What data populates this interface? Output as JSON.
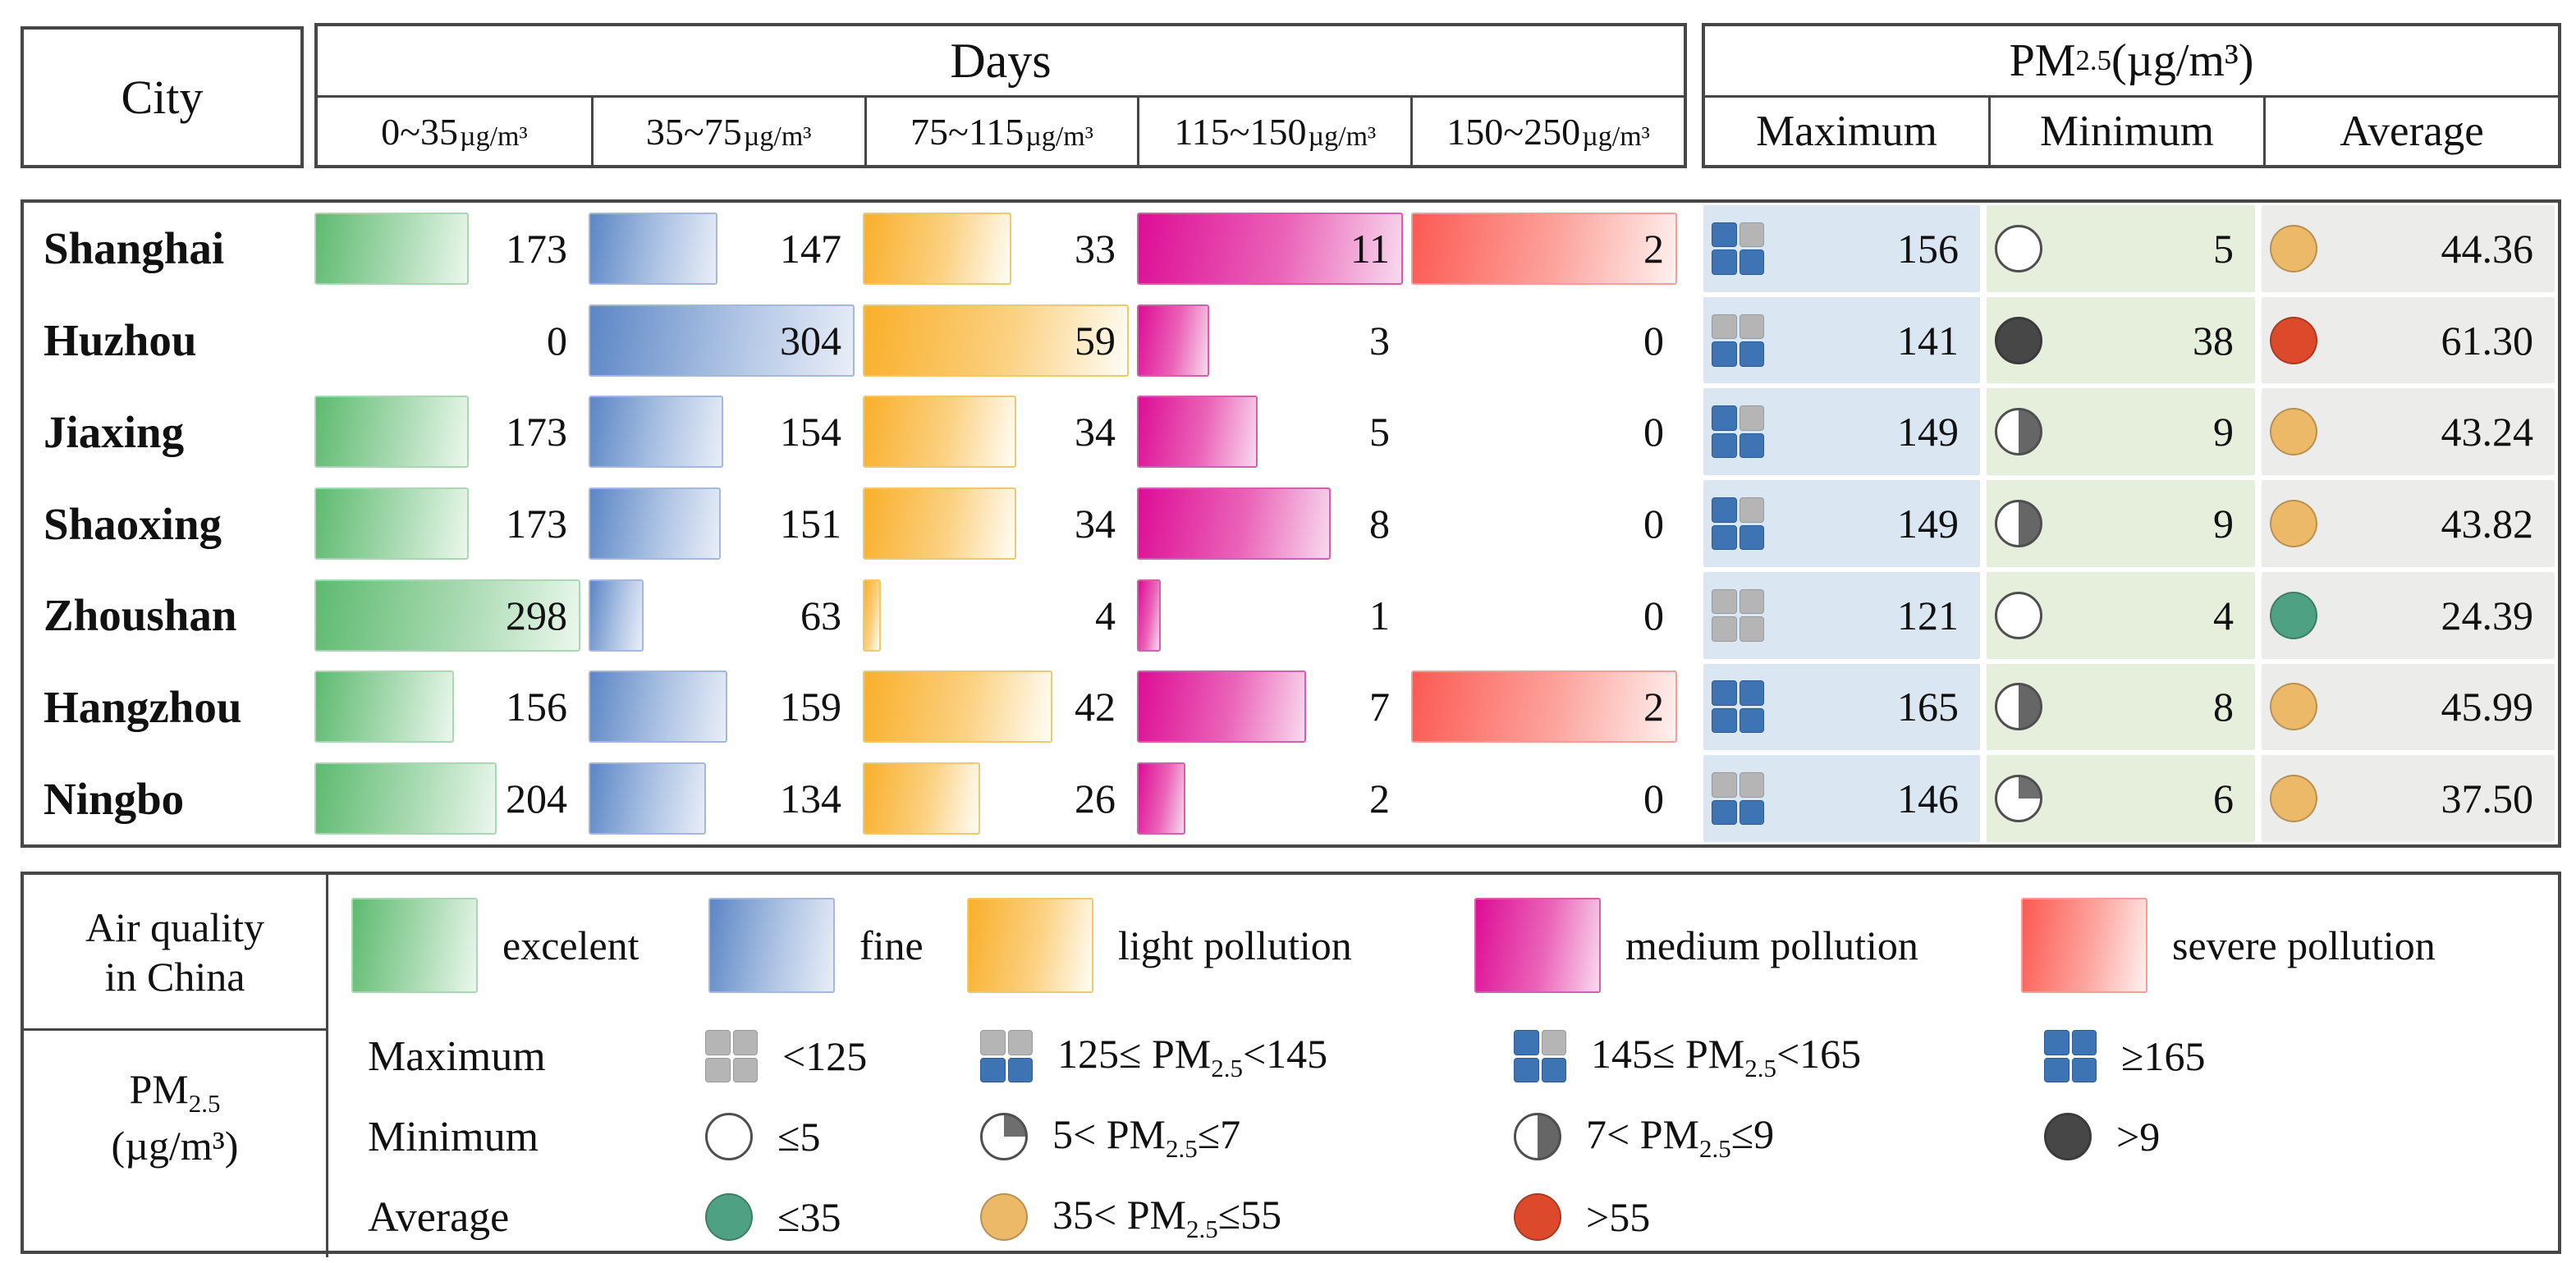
{
  "header": {
    "city": "City",
    "days_title": "Days",
    "days_columns": [
      {
        "range": "0~35",
        "unit": "µg/m³"
      },
      {
        "range": "35~75",
        "unit": "µg/m³"
      },
      {
        "range": "75~115",
        "unit": "µg/m³"
      },
      {
        "range": "115~150",
        "unit": "µg/m³"
      },
      {
        "range": "150~250",
        "unit": "µg/m³"
      }
    ],
    "pm_title": {
      "pre": "PM",
      "sub": "2.5",
      "post": "(µg/m³)"
    },
    "pm_columns": [
      "Maximum",
      "Minimum",
      "Average"
    ]
  },
  "rows": [
    {
      "city": "Shanghai",
      "days": [
        173,
        147,
        33,
        11,
        2
      ],
      "max": 156,
      "max_icon": "q3",
      "min": 5,
      "min_icon": "empty",
      "avg": "44.36",
      "avg_icon": "orange"
    },
    {
      "city": "Huzhou",
      "days": [
        0,
        304,
        59,
        3,
        0
      ],
      "max": 141,
      "max_icon": "q2",
      "min": 38,
      "min_icon": "full",
      "avg": "61.30",
      "avg_icon": "red"
    },
    {
      "city": "Jiaxing",
      "days": [
        173,
        154,
        34,
        5,
        0
      ],
      "max": 149,
      "max_icon": "q3",
      "min": 9,
      "min_icon": "half",
      "avg": "43.24",
      "avg_icon": "orange"
    },
    {
      "city": "Shaoxing",
      "days": [
        173,
        151,
        34,
        8,
        0
      ],
      "max": 149,
      "max_icon": "q3",
      "min": 9,
      "min_icon": "half",
      "avg": "43.82",
      "avg_icon": "orange"
    },
    {
      "city": "Zhoushan",
      "days": [
        298,
        63,
        4,
        1,
        0
      ],
      "max": 121,
      "max_icon": "q0",
      "min": 4,
      "min_icon": "empty",
      "avg": "24.39",
      "avg_icon": "green"
    },
    {
      "city": "Hangzhou",
      "days": [
        156,
        159,
        42,
        7,
        2
      ],
      "max": 165,
      "max_icon": "q4",
      "min": 8,
      "min_icon": "half",
      "avg": "45.99",
      "avg_icon": "orange"
    },
    {
      "city": "Ningbo",
      "days": [
        204,
        134,
        26,
        2,
        0
      ],
      "max": 146,
      "max_icon": "q2",
      "min": 6,
      "min_icon": "quarter",
      "avg": "37.50",
      "avg_icon": "orange"
    }
  ],
  "max_icon_defs": {
    "q0": [
      "g",
      "g",
      "g",
      "g"
    ],
    "q2": [
      "g",
      "g",
      "b",
      "b"
    ],
    "q3": [
      "b",
      "g",
      "b",
      "b"
    ],
    "q4": [
      "b",
      "b",
      "b",
      "b"
    ]
  },
  "legend": {
    "air_title_line1": "Air quality",
    "air_title_line2": "in China",
    "pm_label": {
      "pre": "PM",
      "sub": "2.5",
      "post": "(µg/m³)"
    },
    "air_items": [
      {
        "color": "green",
        "label": "excelent"
      },
      {
        "color": "blue",
        "label": "fine"
      },
      {
        "color": "yellow",
        "label": "light pollution"
      },
      {
        "color": "magenta",
        "label": "medium pollution"
      },
      {
        "color": "red",
        "label": "severe pollution"
      }
    ],
    "max_row": {
      "label": "Maximum",
      "items": [
        {
          "icon": "q0",
          "pre": "<125",
          "sub": "",
          "post": ""
        },
        {
          "icon": "q2",
          "pre": "125≤ PM",
          "sub": "2.5",
          "post": "<145"
        },
        {
          "icon": "q3",
          "pre": "145≤ PM",
          "sub": "2.5",
          "post": "<165"
        },
        {
          "icon": "q4",
          "pre": "≥165",
          "sub": "",
          "post": ""
        }
      ]
    },
    "min_row": {
      "label": "Minimum",
      "items": [
        {
          "icon": "empty",
          "pre": "≤5",
          "sub": "",
          "post": ""
        },
        {
          "icon": "quarter",
          "pre": "5< PM",
          "sub": "2.5",
          "post": "≤7"
        },
        {
          "icon": "half",
          "pre": "7< PM",
          "sub": "2.5",
          "post": "≤9"
        },
        {
          "icon": "full",
          "pre": ">9",
          "sub": "",
          "post": ""
        }
      ]
    },
    "avg_row": {
      "label": "Average",
      "items": [
        {
          "icon": "green",
          "pre": "≤35",
          "sub": "",
          "post": ""
        },
        {
          "icon": "orange",
          "pre": "35< PM",
          "sub": "2.5",
          "post": "≤55"
        },
        {
          "icon": "red",
          "pre": ">55",
          "sub": "",
          "post": ""
        }
      ]
    }
  },
  "colors": {
    "quad_blue": "#3e74b4",
    "quad_gray": "#b5b5b5",
    "min_circle_fill": "#5f5f5f",
    "avg_green": "#4fa183",
    "avg_orange": "#ecb969",
    "avg_red": "#dc4a2b",
    "col_bg_max": "#dae7f3",
    "col_bg_min": "#e5efdb",
    "col_bg_avg": "#ecedea",
    "bar_green": "#5eba70",
    "bar_blue": "#5c86c5",
    "bar_yellow": "#f9af2a",
    "bar_magenta": "#dd0d95",
    "bar_red": "#fb5a52"
  },
  "chart_data": {
    "type": "table",
    "title": "Air quality days distribution and PM2.5 statistics by city",
    "columns": [
      "City",
      "Days 0~35µg/m³ (excelent)",
      "Days 35~75µg/m³ (fine)",
      "Days 75~115µg/m³ (light pollution)",
      "Days 115~150µg/m³ (medium pollution)",
      "Days 150~250µg/m³ (severe pollution)",
      "PM2.5 Maximum (µg/m³)",
      "PM2.5 Minimum (µg/m³)",
      "PM2.5 Average (µg/m³)"
    ],
    "rows": [
      [
        "Shanghai",
        173,
        147,
        33,
        11,
        2,
        156,
        5,
        44.36
      ],
      [
        "Huzhou",
        0,
        304,
        59,
        3,
        0,
        141,
        38,
        61.3
      ],
      [
        "Jiaxing",
        173,
        154,
        34,
        5,
        0,
        149,
        9,
        43.24
      ],
      [
        "Shaoxing",
        173,
        151,
        34,
        8,
        0,
        149,
        9,
        43.82
      ],
      [
        "Zhoushan",
        298,
        63,
        4,
        1,
        0,
        121,
        4,
        24.39
      ],
      [
        "Hangzhou",
        156,
        159,
        42,
        7,
        2,
        165,
        8,
        45.99
      ],
      [
        "Ningbo",
        204,
        134,
        26,
        2,
        0,
        146,
        6,
        37.5
      ]
    ],
    "layout_hints": "horizontal bars inside table cells; each Days column is scaled to its own column maximum; value label right-aligned in each cell"
  }
}
